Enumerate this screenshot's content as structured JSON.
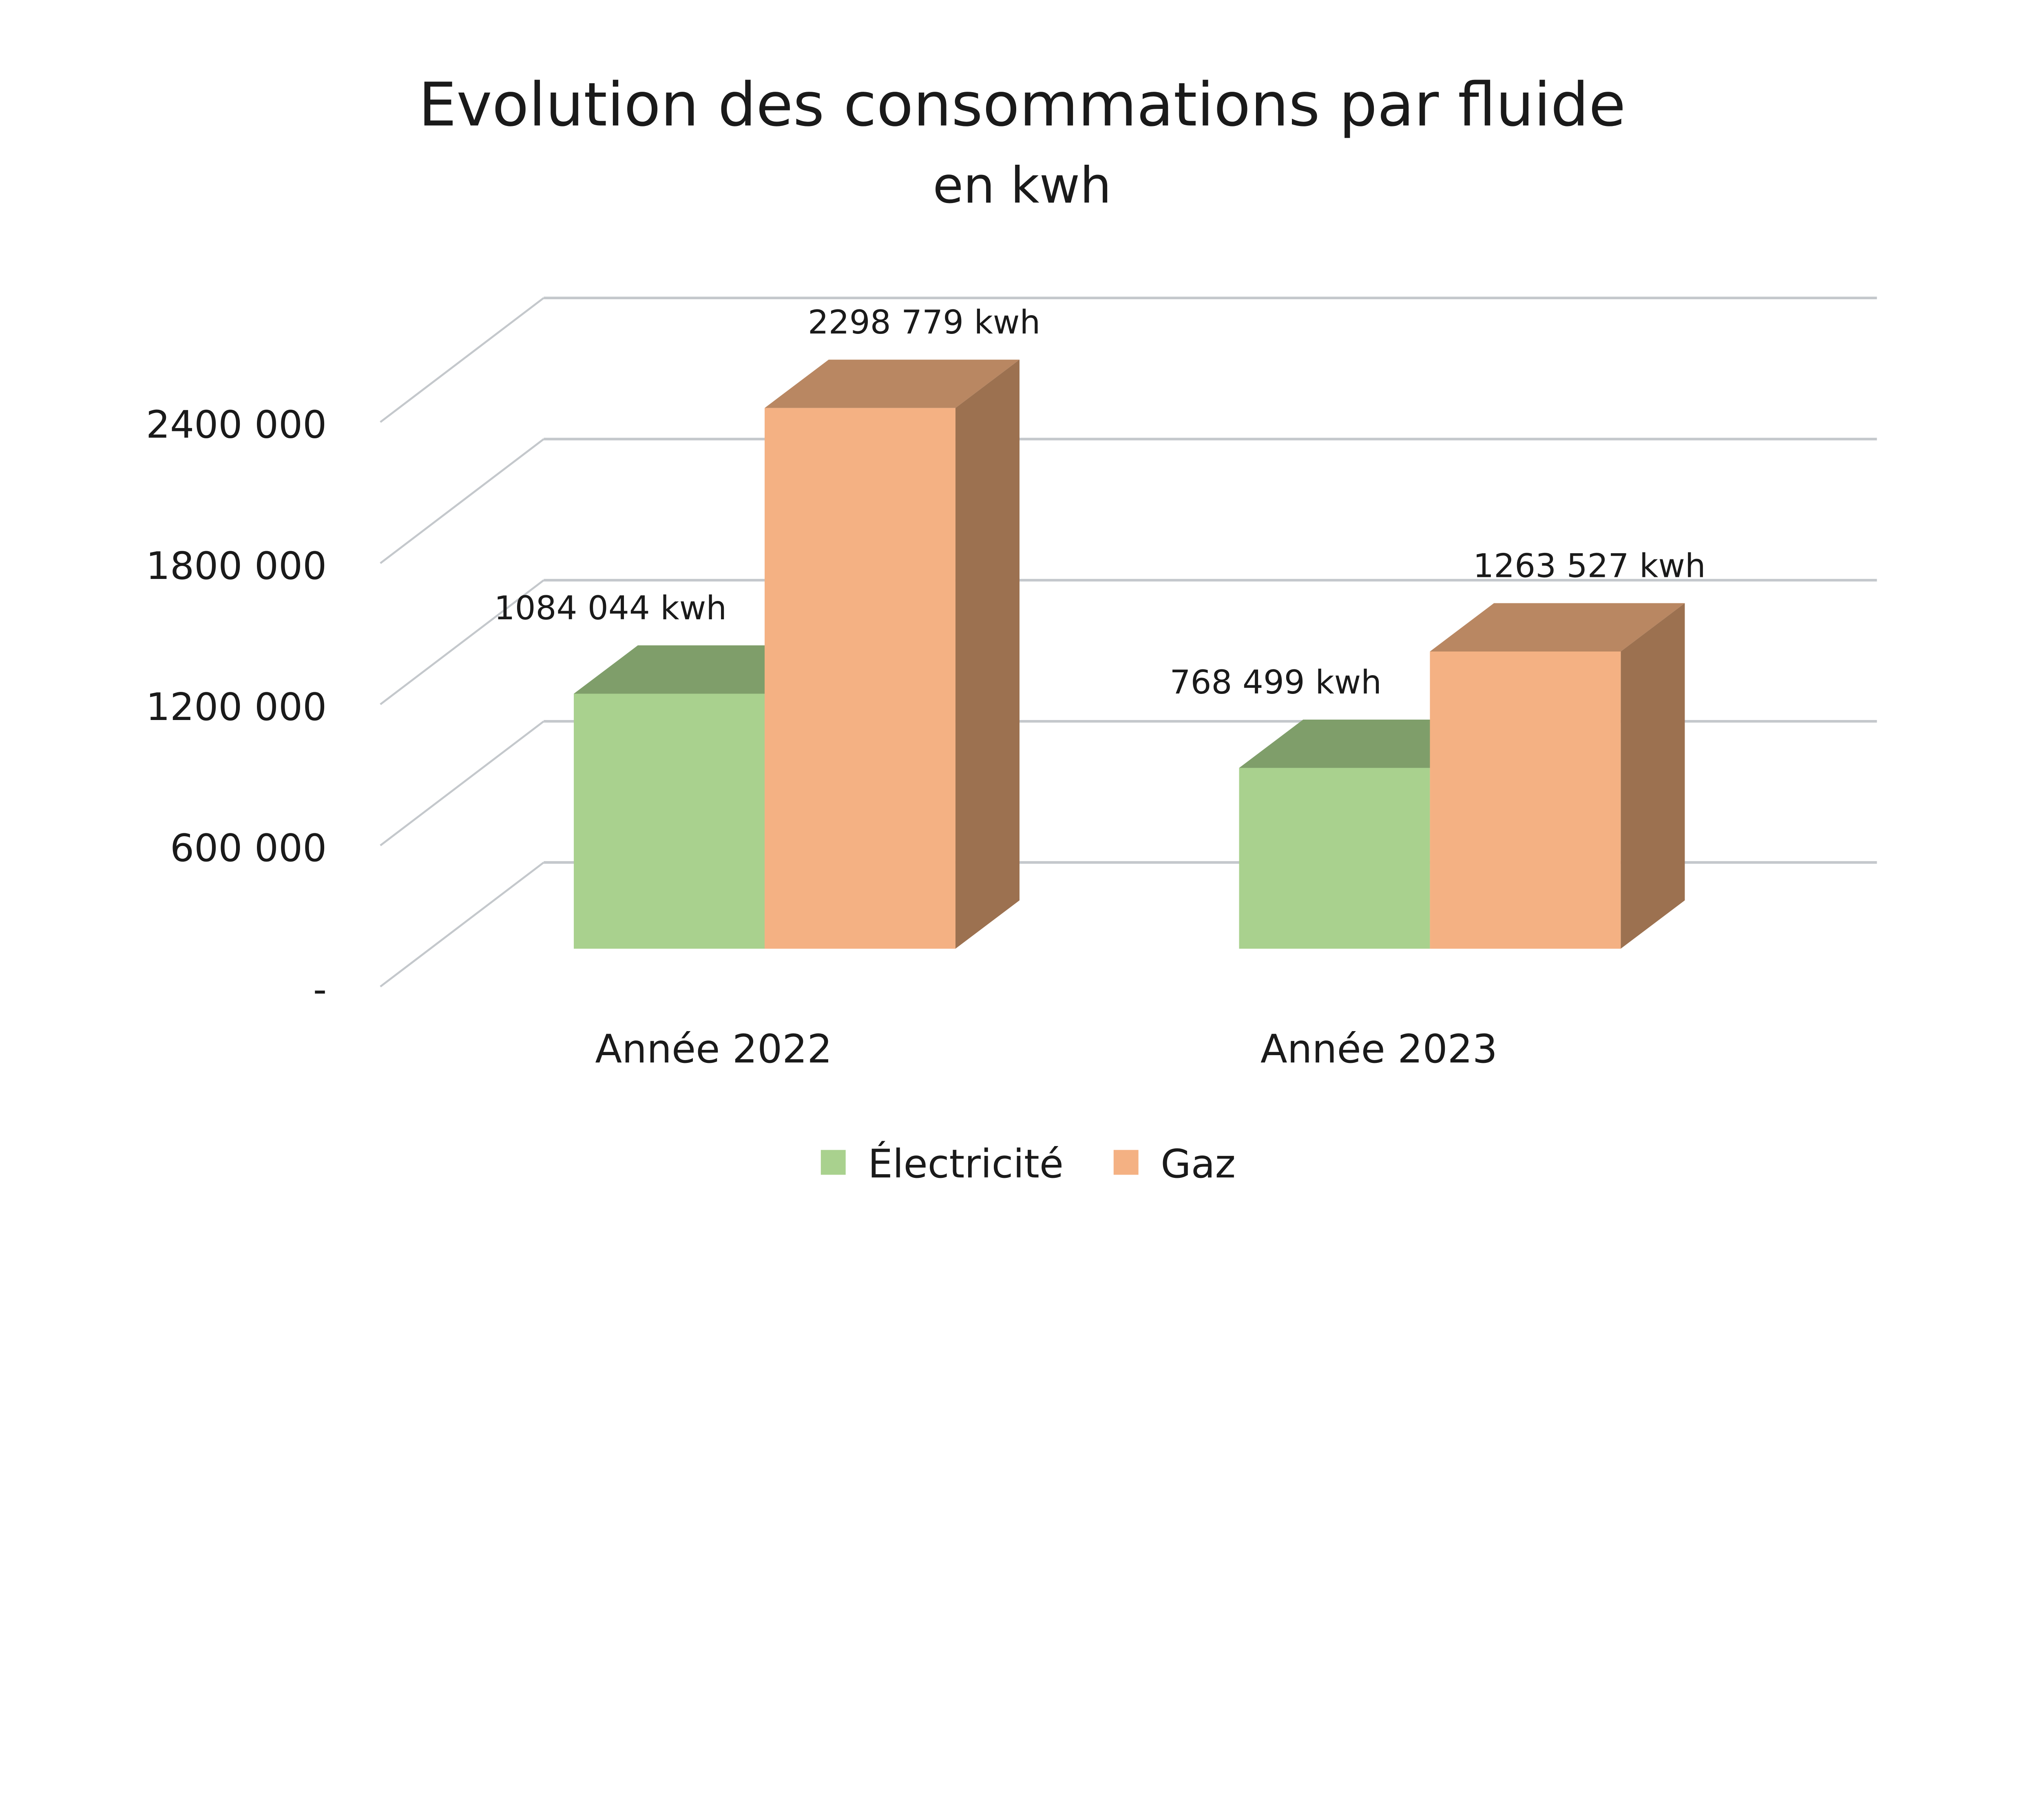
{
  "chart_data": {
    "type": "bar",
    "title": "Evolution des consommations par fluide",
    "subtitle": "en kwh",
    "categories": [
      "Année 2022",
      "Année 2023"
    ],
    "series": [
      {
        "name": "Électricité",
        "values": [
          1084044,
          768499
        ],
        "labels": [
          "1084 044 kwh",
          "768 499 kwh"
        ],
        "color": "#a9d18e",
        "top_color": "#7f9e6a"
      },
      {
        "name": "Gaz",
        "values": [
          2298779,
          1263527
        ],
        "labels": [
          "2298 779 kwh",
          "1263 527 kwh"
        ],
        "color": "#f4b183",
        "top_color": "#b98762",
        "side_color": "#9c7150"
      }
    ],
    "y_ticks": [
      0,
      600000,
      1200000,
      1800000,
      2400000
    ],
    "y_tick_labels": [
      "-",
      "600 000",
      "1200 000",
      "1800 000",
      "2400 000"
    ],
    "ylim": [
      0,
      2400000
    ],
    "grid": true,
    "three_d": true,
    "legend_position": "bottom"
  }
}
